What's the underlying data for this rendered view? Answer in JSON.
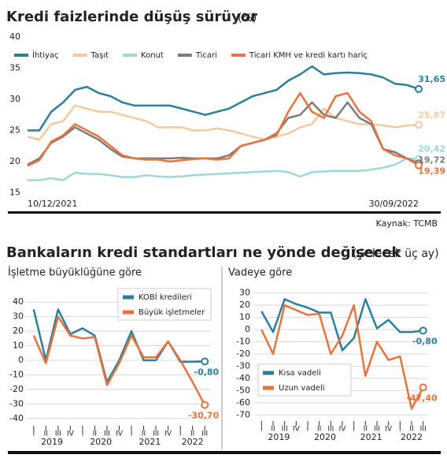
{
  "chart_data": [
    {
      "type": "line",
      "title": "Kredi faizlerinde düşüş sürüyor",
      "subtitle": "(%)",
      "source": "Kaynak: TCMB",
      "categories": [
        "10/12/2021",
        null,
        null,
        null,
        null,
        null,
        null,
        null,
        null,
        null,
        null,
        null,
        null,
        null,
        null,
        null,
        null,
        null,
        null,
        null,
        null,
        null,
        null,
        null,
        null,
        null,
        null,
        null,
        null,
        null,
        null,
        null,
        null,
        "30/09/2022"
      ],
      "ylim": [
        12,
        40
      ],
      "yticks": [
        15,
        20,
        25,
        30,
        35,
        40
      ],
      "grid": false,
      "legend": "top",
      "series": [
        {
          "name": "İhtiyaç",
          "color": "#2b7f9b",
          "values": [
            25,
            25,
            28,
            29.5,
            31.5,
            32,
            31,
            30.5,
            29.5,
            29,
            29,
            29,
            29,
            28.5,
            28,
            27.5,
            28,
            28.5,
            29.5,
            30.5,
            31,
            31.5,
            33,
            34,
            35.3,
            34,
            34.2,
            34.3,
            34.2,
            34,
            33.5,
            32.5,
            32.3,
            31.65
          ],
          "value_labels": [
            null,
            null,
            null,
            null,
            null,
            null,
            null,
            null,
            null,
            null,
            null,
            null,
            null,
            null,
            null,
            null,
            null,
            null,
            null,
            null,
            null,
            null,
            null,
            null,
            null,
            null,
            null,
            null,
            null,
            null,
            null,
            null,
            null,
            "31,65"
          ]
        },
        {
          "name": "Taşıt",
          "color": "#f5c9a0",
          "values": [
            24,
            23.5,
            26,
            26.5,
            29,
            28.5,
            28,
            28,
            27.5,
            27,
            26.5,
            25.5,
            25.5,
            25.5,
            25,
            25,
            25.3,
            25,
            24.5,
            24,
            23.5,
            24,
            24.5,
            25.5,
            26,
            28.5,
            27,
            26.5,
            26,
            26,
            25.8,
            25.5,
            25.8,
            25.87
          ],
          "value_labels": [
            null,
            null,
            null,
            null,
            null,
            null,
            null,
            null,
            null,
            null,
            null,
            null,
            null,
            null,
            null,
            null,
            null,
            null,
            null,
            null,
            null,
            null,
            null,
            null,
            null,
            null,
            null,
            null,
            null,
            null,
            null,
            null,
            null,
            "25,87"
          ]
        },
        {
          "name": "Konut",
          "color": "#9fd6de",
          "values": [
            17,
            17,
            17.3,
            17,
            18.2,
            18,
            18,
            17.8,
            17.5,
            17.5,
            17.8,
            17.6,
            17.5,
            17.6,
            17.8,
            17.9,
            18,
            18.1,
            18.2,
            18.3,
            18.4,
            18.5,
            18.3,
            17.6,
            18.3,
            18.4,
            18.5,
            18.5,
            18.5,
            18.7,
            19,
            19.5,
            20.5,
            20.42
          ],
          "value_labels": [
            null,
            null,
            null,
            null,
            null,
            null,
            null,
            null,
            null,
            null,
            null,
            null,
            null,
            null,
            null,
            null,
            null,
            null,
            null,
            null,
            null,
            null,
            null,
            null,
            null,
            null,
            null,
            null,
            null,
            null,
            null,
            null,
            null,
            "20,42"
          ]
        },
        {
          "name": "Ticari",
          "color": "#7b7b7b",
          "values": [
            19.5,
            20.5,
            23,
            24,
            25.5,
            24.5,
            23.5,
            22,
            20.8,
            20.5,
            20.5,
            20.5,
            20.5,
            20.6,
            20.5,
            20.5,
            20.5,
            21,
            22.5,
            23,
            23.5,
            24.5,
            27,
            27.5,
            29.5,
            27.5,
            27,
            29.5,
            27,
            26,
            22,
            21.5,
            20.5,
            19.72
          ],
          "value_labels": [
            null,
            null,
            null,
            null,
            null,
            null,
            null,
            null,
            null,
            null,
            null,
            null,
            null,
            null,
            null,
            null,
            null,
            null,
            null,
            null,
            null,
            null,
            null,
            null,
            null,
            null,
            null,
            null,
            null,
            null,
            null,
            null,
            null,
            "19,72"
          ]
        },
        {
          "name": "Ticari KMH ve kredi kartı hariç",
          "color": "#e9733d",
          "values": [
            19.3,
            20.2,
            23.2,
            24.2,
            26,
            25,
            24,
            22.5,
            21,
            20.5,
            20.3,
            20.3,
            20,
            20.2,
            20.4,
            20.5,
            20.3,
            20.5,
            22.5,
            23,
            23.5,
            24.2,
            28,
            31,
            28,
            27,
            30.5,
            31,
            28,
            26.5,
            22,
            21,
            20.5,
            19.39
          ],
          "value_labels": [
            null,
            null,
            null,
            null,
            null,
            null,
            null,
            null,
            null,
            null,
            null,
            null,
            null,
            null,
            null,
            null,
            null,
            null,
            null,
            null,
            null,
            null,
            null,
            null,
            null,
            null,
            null,
            null,
            null,
            null,
            null,
            null,
            null,
            "19,39"
          ]
        }
      ]
    },
    {
      "type": "line",
      "section_title": "Bankaların kredi standartları ne yönde değişecek",
      "section_subtitle": "(Gelecek üç ay)",
      "title": "İşletme büyüklüğüne göre",
      "categories": [
        "I",
        "II",
        "III",
        "IV",
        "I",
        "II",
        "III",
        "IV",
        "I",
        "II",
        "III",
        "IV",
        "I",
        "II",
        "III"
      ],
      "years": [
        "2019",
        "2020",
        "2021",
        "2022"
      ],
      "ylim": [
        -45,
        45
      ],
      "yticks": [
        -40,
        -30,
        -20,
        -10,
        0,
        10,
        20,
        30,
        40
      ],
      "grid": true,
      "legend": "upper right",
      "series": [
        {
          "name": "KOBİ kredileri",
          "color": "#2b7f9b",
          "values": [
            35,
            0,
            35,
            18,
            22,
            17,
            -15,
            0,
            20,
            0,
            0,
            13,
            -1,
            -1,
            -0.8
          ],
          "value_labels": [
            null,
            null,
            null,
            null,
            null,
            null,
            null,
            null,
            null,
            null,
            null,
            null,
            null,
            null,
            "-0,80"
          ]
        },
        {
          "name": "Büyük işletmeler",
          "color": "#e9733d",
          "values": [
            17,
            -2,
            30,
            17,
            15,
            16,
            -17,
            -2,
            17,
            2,
            2,
            13,
            0,
            -15,
            -30.7
          ],
          "value_labels": [
            null,
            null,
            null,
            null,
            null,
            null,
            null,
            null,
            null,
            null,
            null,
            null,
            null,
            null,
            "-30,70"
          ]
        }
      ]
    },
    {
      "type": "line",
      "title": "Vadeye göre",
      "categories": [
        "I",
        "II",
        "III",
        "IV",
        "I",
        "II",
        "III",
        "IV",
        "I",
        "II",
        "III",
        "IV",
        "I",
        "II",
        "III"
      ],
      "years": [
        "2019",
        "2020",
        "2021",
        "2022"
      ],
      "ylim": [
        -75,
        35
      ],
      "yticks": [
        -70,
        -60,
        -50,
        -40,
        -30,
        -20,
        -10,
        0,
        10,
        20,
        30
      ],
      "grid": true,
      "legend": "lower left",
      "series": [
        {
          "name": "Kısa vadeli",
          "color": "#2b7f9b",
          "values": [
            15,
            -2,
            25,
            21,
            18,
            14,
            14,
            -17,
            -7,
            25,
            1,
            8,
            -2,
            -2,
            -0.8
          ],
          "value_labels": [
            null,
            null,
            null,
            null,
            null,
            null,
            null,
            null,
            null,
            null,
            null,
            null,
            null,
            null,
            "-0,80"
          ]
        },
        {
          "name": "Uzun vadeli",
          "color": "#e9733d",
          "values": [
            0,
            -20,
            20,
            16,
            12,
            13,
            -20,
            -5,
            20,
            -38,
            -10,
            -25,
            -22,
            -65,
            -47.4
          ],
          "value_labels": [
            null,
            null,
            null,
            null,
            null,
            null,
            null,
            null,
            null,
            null,
            null,
            null,
            null,
            null,
            "-47,40"
          ]
        }
      ]
    }
  ]
}
